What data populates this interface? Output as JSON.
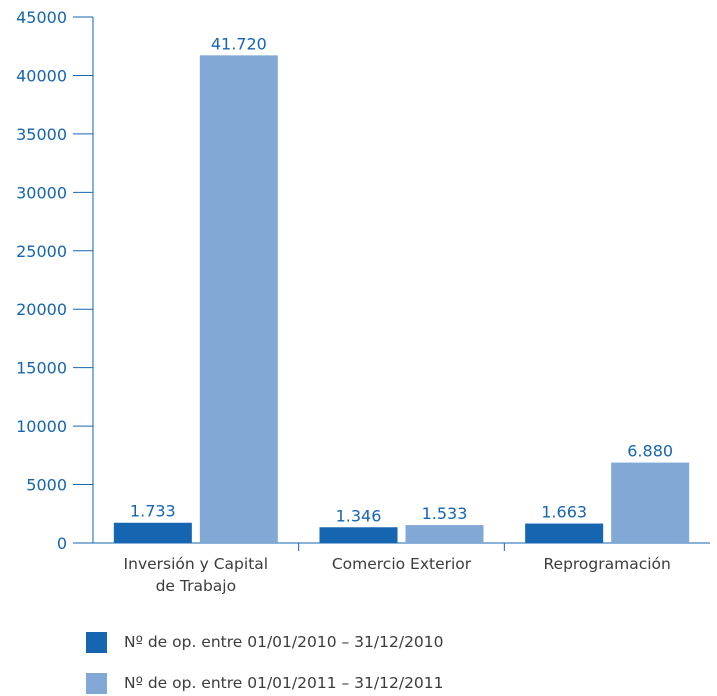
{
  "chart_data": {
    "type": "bar",
    "title": "",
    "xlabel": "",
    "ylabel": "",
    "ylim": [
      0,
      45000
    ],
    "yticks": [
      0,
      5000,
      10000,
      15000,
      20000,
      25000,
      30000,
      35000,
      40000,
      45000
    ],
    "grid": false,
    "legend_position": "bottom",
    "categories": [
      [
        "Inversión y Capital",
        "de Trabajo"
      ],
      [
        "Comercio Exterior"
      ],
      [
        "Reprogramación"
      ]
    ],
    "series": [
      {
        "name": "Nº de op. entre 01/01/2010 – 31/12/2010",
        "color": "#1565b0",
        "values": [
          1733,
          1346,
          1663
        ],
        "labels": [
          "1.733",
          "1.346",
          "1.663"
        ]
      },
      {
        "name": "Nº de op. entre 01/01/2011 – 31/12/2011",
        "color": "#82a8d6",
        "values": [
          41720,
          1533,
          6880
        ],
        "labels": [
          "41.720",
          "1.533",
          "6.880"
        ]
      }
    ],
    "axis_color": "#1565b0",
    "text_color": "#3c3c3c"
  }
}
